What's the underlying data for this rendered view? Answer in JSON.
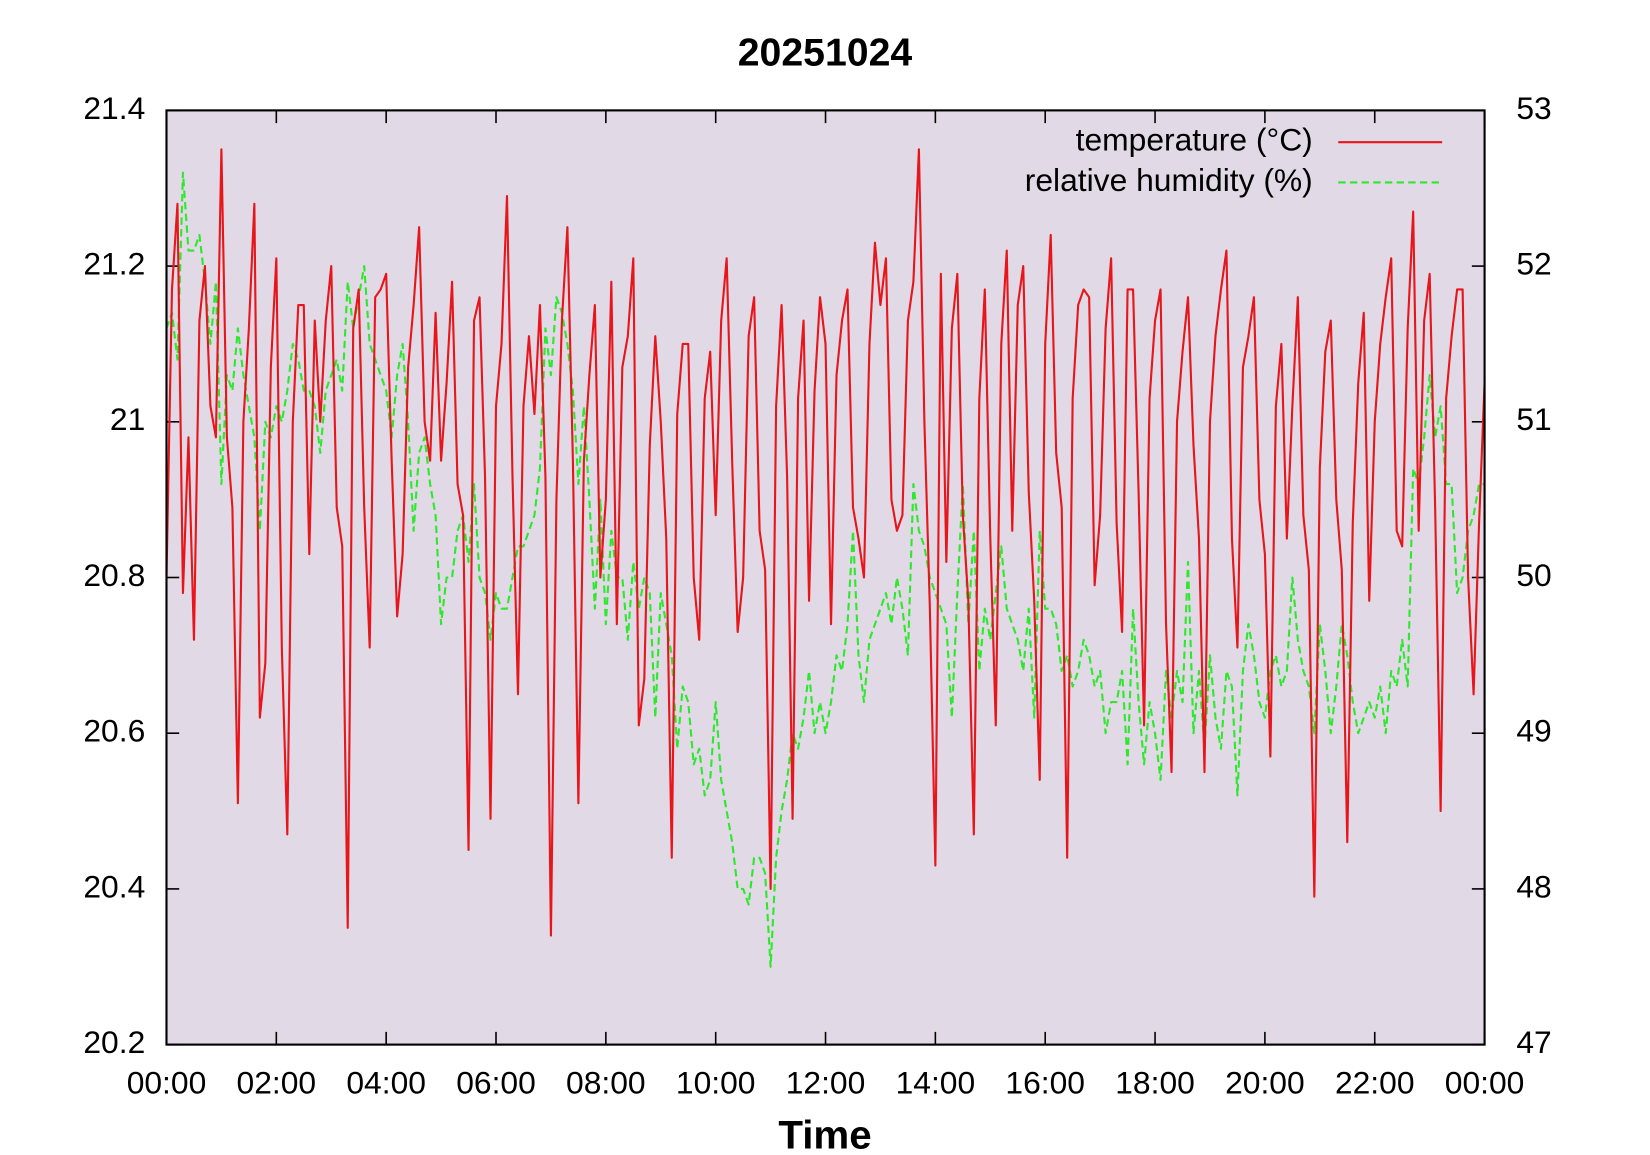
{
  "chart_data": {
    "type": "line",
    "title": "20251024",
    "xlabel": "Time",
    "x": [
      0,
      0.1,
      0.2,
      0.3,
      0.4,
      0.5,
      0.6,
      0.7,
      0.8,
      0.9,
      1,
      1.1,
      1.2,
      1.3,
      1.4,
      1.5,
      1.6,
      1.7,
      1.8,
      1.9,
      2,
      2.1,
      2.2,
      2.3,
      2.4,
      2.5,
      2.6,
      2.7,
      2.8,
      2.9,
      3,
      3.1,
      3.2,
      3.3,
      3.4,
      3.5,
      3.6,
      3.7,
      3.8,
      3.9,
      4,
      4.1,
      4.2,
      4.3,
      4.4,
      4.5,
      4.6,
      4.7,
      4.8,
      4.9,
      5,
      5.1,
      5.2,
      5.3,
      5.4,
      5.5,
      5.6,
      5.7,
      5.8,
      5.9,
      6,
      6.1,
      6.2,
      6.3,
      6.4,
      6.5,
      6.6,
      6.7,
      6.8,
      6.9,
      7,
      7.1,
      7.2,
      7.3,
      7.4,
      7.5,
      7.6,
      7.7,
      7.8,
      7.9,
      8,
      8.1,
      8.2,
      8.3,
      8.4,
      8.5,
      8.6,
      8.7,
      8.8,
      8.9,
      9,
      9.1,
      9.2,
      9.3,
      9.4,
      9.5,
      9.6,
      9.7,
      9.8,
      9.9,
      10,
      10.1,
      10.2,
      10.3,
      10.4,
      10.5,
      10.6,
      10.7,
      10.8,
      10.9,
      11,
      11.1,
      11.2,
      11.3,
      11.4,
      11.5,
      11.6,
      11.7,
      11.8,
      11.9,
      12,
      12.1,
      12.2,
      12.3,
      12.4,
      12.5,
      12.6,
      12.7,
      12.8,
      12.9,
      13,
      13.1,
      13.2,
      13.3,
      13.4,
      13.5,
      13.6,
      13.7,
      13.8,
      13.9,
      14,
      14.1,
      14.2,
      14.3,
      14.4,
      14.5,
      14.6,
      14.7,
      14.8,
      14.9,
      15,
      15.1,
      15.2,
      15.3,
      15.4,
      15.5,
      15.6,
      15.7,
      15.8,
      15.9,
      16,
      16.1,
      16.2,
      16.3,
      16.4,
      16.5,
      16.6,
      16.7,
      16.8,
      16.9,
      17,
      17.1,
      17.2,
      17.3,
      17.4,
      17.5,
      17.6,
      17.7,
      17.8,
      17.9,
      18,
      18.1,
      18.2,
      18.3,
      18.4,
      18.5,
      18.6,
      18.7,
      18.8,
      18.9,
      19,
      19.1,
      19.2,
      19.3,
      19.4,
      19.5,
      19.6,
      19.7,
      19.8,
      19.9,
      20,
      20.1,
      20.2,
      20.3,
      20.4,
      20.5,
      20.6,
      20.7,
      20.8,
      20.9,
      21,
      21.1,
      21.2,
      21.3,
      21.4,
      21.5,
      21.6,
      21.7,
      21.8,
      21.9,
      22,
      22.1,
      22.2,
      22.3,
      22.4,
      22.5,
      22.6,
      22.7,
      22.8,
      22.9,
      23,
      23.1,
      23.2,
      23.3,
      23.4,
      23.5,
      23.6,
      23.7,
      23.8,
      23.9,
      24
    ],
    "xlim": [
      0,
      24
    ],
    "xticks": [
      {
        "value": 0,
        "label": "00:00"
      },
      {
        "value": 2,
        "label": "02:00"
      },
      {
        "value": 4,
        "label": "04:00"
      },
      {
        "value": 6,
        "label": "06:00"
      },
      {
        "value": 8,
        "label": "08:00"
      },
      {
        "value": 10,
        "label": "10:00"
      },
      {
        "value": 12,
        "label": "12:00"
      },
      {
        "value": 14,
        "label": "14:00"
      },
      {
        "value": 16,
        "label": "16:00"
      },
      {
        "value": 18,
        "label": "18:00"
      },
      {
        "value": 20,
        "label": "20:00"
      },
      {
        "value": 22,
        "label": "22:00"
      },
      {
        "value": 24,
        "label": "00:00"
      }
    ],
    "ylim": [
      20.2,
      21.4
    ],
    "yticks": [
      20.2,
      20.4,
      20.6,
      20.8,
      21,
      21.2,
      21.4
    ],
    "y2lim": [
      47,
      53
    ],
    "y2ticks": [
      47,
      48,
      49,
      50,
      51,
      52,
      53
    ],
    "grid": false,
    "legend": "upper right",
    "series": [
      {
        "name": "temperature (°C)",
        "color": "#e8161b",
        "line_style": "solid",
        "values": [
          20.8,
          21.17,
          21.28,
          20.78,
          20.98,
          20.72,
          21.13,
          21.2,
          21.02,
          20.98,
          21.35,
          20.98,
          20.89,
          20.51,
          21.0,
          21.12,
          21.28,
          20.62,
          20.69,
          21.07,
          21.21,
          20.71,
          20.47,
          21.0,
          21.15,
          21.15,
          20.83,
          21.13,
          21.0,
          21.13,
          21.2,
          20.89,
          20.84,
          20.35,
          21.12,
          21.17,
          20.89,
          20.71,
          21.16,
          21.17,
          21.19,
          20.95,
          20.75,
          20.83,
          21.07,
          21.15,
          21.25,
          21.0,
          20.95,
          21.14,
          20.95,
          21.05,
          21.18,
          20.92,
          20.88,
          20.45,
          21.13,
          21.16,
          20.93,
          20.49,
          21.02,
          21.1,
          21.29,
          20.93,
          20.65,
          21.02,
          21.11,
          21.01,
          21.15,
          20.93,
          20.34,
          20.9,
          21.13,
          21.25,
          20.95,
          20.51,
          20.95,
          21.06,
          21.15,
          20.8,
          20.9,
          21.18,
          20.74,
          21.07,
          21.11,
          21.21,
          20.61,
          20.67,
          20.97,
          21.11,
          21.0,
          20.85,
          20.44,
          21.01,
          21.1,
          21.1,
          20.8,
          20.72,
          21.03,
          21.09,
          20.88,
          21.13,
          21.21,
          20.95,
          20.73,
          20.8,
          21.11,
          21.16,
          20.86,
          20.81,
          20.4,
          21.02,
          21.15,
          20.93,
          20.49,
          21.03,
          21.13,
          20.77,
          21.04,
          21.16,
          21.1,
          20.74,
          21.06,
          21.13,
          21.17,
          20.89,
          20.85,
          20.8,
          21.1,
          21.23,
          21.15,
          21.21,
          20.9,
          20.86,
          20.88,
          21.13,
          21.18,
          21.35,
          21.0,
          20.76,
          20.43,
          21.19,
          20.82,
          21.12,
          21.19,
          20.88,
          20.77,
          20.47,
          21.03,
          21.17,
          20.85,
          20.61,
          21.1,
          21.22,
          20.86,
          21.15,
          21.2,
          20.91,
          20.77,
          20.54,
          21.1,
          21.24,
          20.96,
          20.89,
          20.44,
          21.03,
          21.15,
          21.17,
          21.16,
          20.79,
          20.88,
          21.12,
          21.21,
          20.87,
          20.73,
          21.17,
          21.17,
          20.91,
          20.61,
          21.03,
          21.13,
          21.17,
          20.74,
          20.55,
          21.0,
          21.09,
          21.16,
          20.97,
          20.85,
          20.55,
          21.0,
          21.11,
          21.17,
          21.22,
          20.85,
          20.71,
          21.07,
          21.11,
          21.16,
          20.9,
          20.83,
          20.57,
          21.02,
          21.1,
          20.85,
          21.02,
          21.16,
          20.88,
          20.81,
          20.39,
          20.94,
          21.09,
          21.13,
          20.9,
          20.81,
          20.46,
          20.87,
          21.05,
          21.14,
          20.77,
          21.0,
          21.1,
          21.16,
          21.21,
          20.86,
          20.84,
          21.12,
          21.27,
          20.86,
          21.13,
          21.19,
          20.89,
          20.5,
          21.03,
          21.11,
          21.17,
          21.17,
          20.8,
          20.65,
          20.87,
          21.05
        ]
      },
      {
        "name": "relative humidity (%)",
        "color": "#2ee82e",
        "line_style": "dashed",
        "axis": "y2",
        "values": [
          51.6,
          51.7,
          51.4,
          52.6,
          52.1,
          52.1,
          52.2,
          51.9,
          51.5,
          51.9,
          50.6,
          51.3,
          51.2,
          51.6,
          51.3,
          51.1,
          50.9,
          50.3,
          51.0,
          50.9,
          51.1,
          51.0,
          51.2,
          51.5,
          51.4,
          51.2,
          51.2,
          51.1,
          50.8,
          51.2,
          51.3,
          51.4,
          51.2,
          51.9,
          51.6,
          51.8,
          52.0,
          51.5,
          51.4,
          51.3,
          51.2,
          50.9,
          51.3,
          51.5,
          51.0,
          50.3,
          50.8,
          50.9,
          50.6,
          50.4,
          49.7,
          50.0,
          50.0,
          50.3,
          50.4,
          50.1,
          50.6,
          50.0,
          49.9,
          49.6,
          49.9,
          49.8,
          49.8,
          50.0,
          50.2,
          50.2,
          50.3,
          50.4,
          50.7,
          51.6,
          51.3,
          51.8,
          51.7,
          51.5,
          51.2,
          50.6,
          51.1,
          50.5,
          49.8,
          50.5,
          49.7,
          50.3,
          50.0,
          50.0,
          49.6,
          50.1,
          49.8,
          50.0,
          49.9,
          49.1,
          49.9,
          49.7,
          49.5,
          48.9,
          49.3,
          49.2,
          48.8,
          48.9,
          48.6,
          48.7,
          49.2,
          48.7,
          48.5,
          48.3,
          48.0,
          48.0,
          47.9,
          48.2,
          48.2,
          48.1,
          47.5,
          48.2,
          48.5,
          48.7,
          49.0,
          48.9,
          49.1,
          49.4,
          49.0,
          49.2,
          49.0,
          49.2,
          49.5,
          49.4,
          49.7,
          50.3,
          49.5,
          49.2,
          49.6,
          49.7,
          49.8,
          49.9,
          49.7,
          50.0,
          49.8,
          49.5,
          50.6,
          50.3,
          50.2,
          50.0,
          49.9,
          49.8,
          49.7,
          49.1,
          49.9,
          50.6,
          49.7,
          50.3,
          49.4,
          49.8,
          49.6,
          49.9,
          50.2,
          49.8,
          49.7,
          49.6,
          49.4,
          49.8,
          49.1,
          50.3,
          49.8,
          49.8,
          49.7,
          49.4,
          49.5,
          49.3,
          49.4,
          49.6,
          49.5,
          49.3,
          49.4,
          49.0,
          49.2,
          49.2,
          49.4,
          48.8,
          49.8,
          49.2,
          48.8,
          49.2,
          49.0,
          48.7,
          49.4,
          49.1,
          49.4,
          49.2,
          50.1,
          49.0,
          49.4,
          48.9,
          49.5,
          49.1,
          48.9,
          49.4,
          49.3,
          48.6,
          49.4,
          49.7,
          49.5,
          49.2,
          49.1,
          49.4,
          49.5,
          49.3,
          49.4,
          50.0,
          49.6,
          49.4,
          49.3,
          49.0,
          49.7,
          49.4,
          49.0,
          49.3,
          49.7,
          49.5,
          49.2,
          49.0,
          49.1,
          49.2,
          49.1,
          49.3,
          49.0,
          49.4,
          49.3,
          49.6,
          49.3,
          50.7,
          50.6,
          50.9,
          51.3,
          50.9,
          51.1,
          50.6,
          50.6,
          49.9,
          50.0,
          50.3,
          50.4,
          50.6,
          50.6
        ]
      }
    ]
  }
}
